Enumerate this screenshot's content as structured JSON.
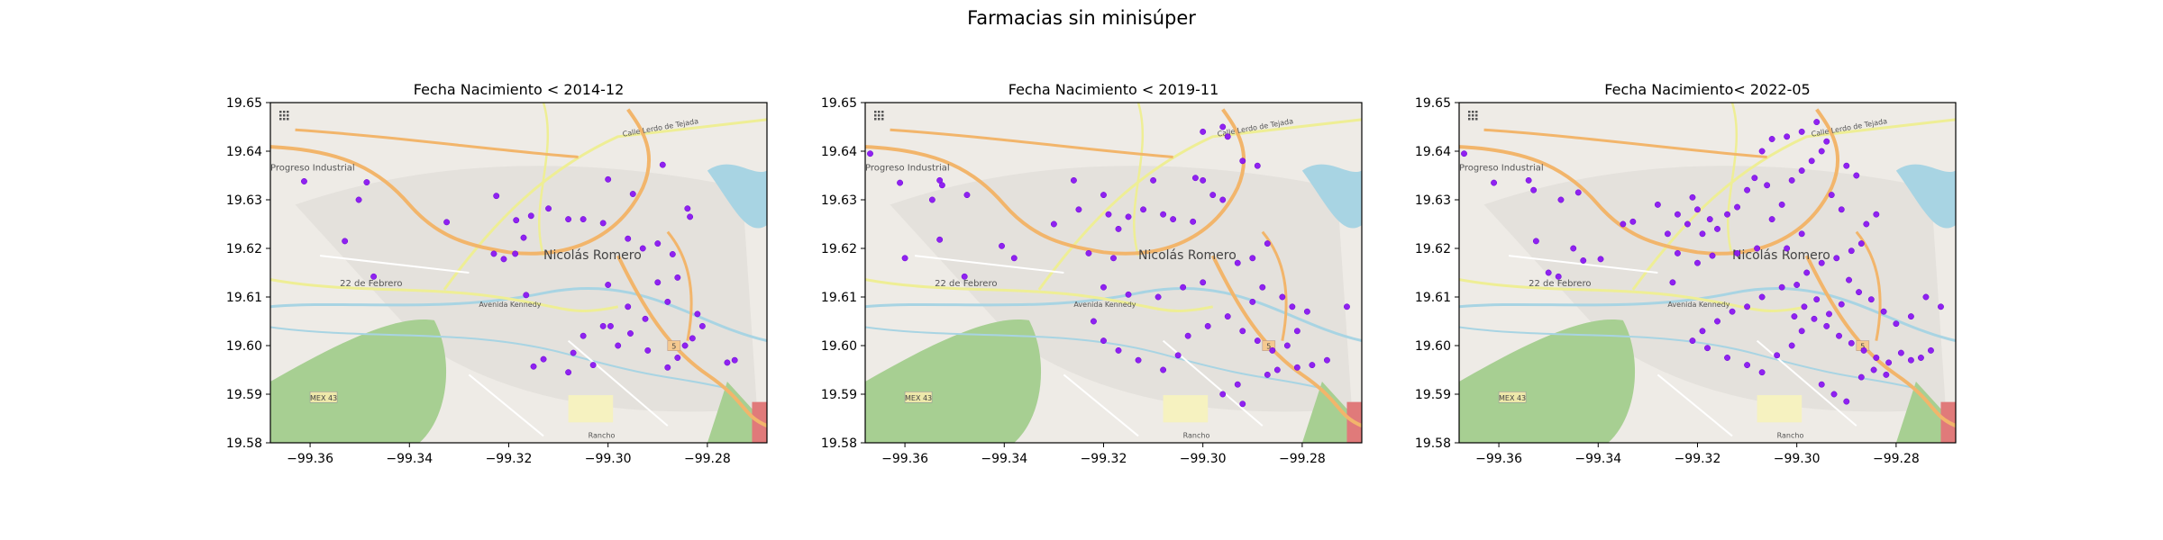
{
  "figure": {
    "suptitle": "Farmacias sin minisúper"
  },
  "style": {
    "point_color": "#8a17f0",
    "point_edge": "#6a00d6",
    "map_land": "#eeebe6",
    "map_park": "#a7cf92",
    "map_water": "#a8d4e3",
    "map_road_major": "#f2b56b",
    "map_road_secondary": "#eeee95"
  },
  "map_labels": {
    "progreso": "Progreso Industrial",
    "nicolas": "Nicolás Romero",
    "febrero": "22 de Febrero",
    "kennedy": "Avenida Kennedy",
    "mex43": "MEX 43",
    "rancho": "Rancho",
    "lerdo": "Calle Lerdo de Tejada",
    "shield": "5"
  },
  "chart_data": [
    {
      "type": "scatter",
      "title": "Fecha Nacimiento < 2014-12",
      "xlim": [
        -99.368,
        -99.268
      ],
      "ylim": [
        19.58,
        19.65
      ],
      "xticks": [
        -99.36,
        -99.34,
        -99.32,
        -99.3,
        -99.28
      ],
      "xtick_labels": [
        "−99.36",
        "−99.34",
        "−99.32",
        "−99.30",
        "−99.28"
      ],
      "yticks": [
        19.58,
        19.59,
        19.6,
        19.61,
        19.62,
        19.63,
        19.64,
        19.65
      ],
      "ytick_labels": [
        "19.58",
        "19.59",
        "19.60",
        "19.61",
        "19.62",
        "19.63",
        "19.64",
        "19.65"
      ],
      "background": "OpenStreetMap tiles",
      "grid": false,
      "points": [
        [
          -99.3612,
          19.6338
        ],
        [
          -99.3486,
          19.6336
        ],
        [
          -99.3502,
          19.63
        ],
        [
          -99.353,
          19.6215
        ],
        [
          -99.3472,
          19.6142
        ],
        [
          -99.3325,
          19.6254
        ],
        [
          -99.3225,
          19.6308
        ],
        [
          -99.3185,
          19.6258
        ],
        [
          -99.317,
          19.6222
        ],
        [
          -99.3155,
          19.6267
        ],
        [
          -99.312,
          19.6282
        ],
        [
          -99.308,
          19.626
        ],
        [
          -99.305,
          19.626
        ],
        [
          -99.301,
          19.6252
        ],
        [
          -99.3,
          19.6342
        ],
        [
          -99.295,
          19.6312
        ],
        [
          -99.289,
          19.6372
        ],
        [
          -99.284,
          19.6282
        ],
        [
          -99.2835,
          19.6265
        ],
        [
          -99.321,
          19.6178
        ],
        [
          -99.323,
          19.6189
        ],
        [
          -99.3187,
          19.6189
        ],
        [
          -99.3165,
          19.6104
        ],
        [
          -99.296,
          19.622
        ],
        [
          -99.293,
          19.62
        ],
        [
          -99.29,
          19.621
        ],
        [
          -99.287,
          19.6188
        ],
        [
          -99.3,
          19.6125
        ],
        [
          -99.296,
          19.608
        ],
        [
          -99.2995,
          19.604
        ],
        [
          -99.2955,
          19.6025
        ],
        [
          -99.305,
          19.602
        ],
        [
          -99.307,
          19.5985
        ],
        [
          -99.303,
          19.596
        ],
        [
          -99.308,
          19.5945
        ],
        [
          -99.313,
          19.5972
        ],
        [
          -99.315,
          19.5957
        ],
        [
          -99.292,
          19.599
        ],
        [
          -99.288,
          19.5955
        ],
        [
          -99.286,
          19.5975
        ],
        [
          -99.2845,
          19.6
        ],
        [
          -99.283,
          19.6015
        ],
        [
          -99.281,
          19.604
        ],
        [
          -99.282,
          19.6065
        ],
        [
          -99.276,
          19.5965
        ],
        [
          -99.2745,
          19.597
        ],
        [
          -99.288,
          19.609
        ],
        [
          -99.29,
          19.613
        ],
        [
          -99.286,
          19.614
        ],
        [
          -99.2925,
          19.6055
        ],
        [
          -99.301,
          19.604
        ],
        [
          -99.298,
          19.6
        ]
      ]
    },
    {
      "type": "scatter",
      "title": "Fecha Nacimiento < 2019-11",
      "xlim": [
        -99.368,
        -99.268
      ],
      "ylim": [
        19.58,
        19.65
      ],
      "xticks": [
        -99.36,
        -99.34,
        -99.32,
        -99.3,
        -99.28
      ],
      "xtick_labels": [
        "−99.36",
        "−99.34",
        "−99.32",
        "−99.30",
        "−99.28"
      ],
      "yticks": [
        19.58,
        19.59,
        19.6,
        19.61,
        19.62,
        19.63,
        19.64,
        19.65
      ],
      "ytick_labels": [
        "19.58",
        "19.59",
        "19.60",
        "19.61",
        "19.62",
        "19.63",
        "19.64",
        "19.65"
      ],
      "background": "OpenStreetMap tiles",
      "grid": false,
      "points": [
        [
          -99.367,
          19.6395
        ],
        [
          -99.361,
          19.6335
        ],
        [
          -99.353,
          19.634
        ],
        [
          -99.3525,
          19.633
        ],
        [
          -99.3545,
          19.63
        ],
        [
          -99.3475,
          19.631
        ],
        [
          -99.353,
          19.6218
        ],
        [
          -99.348,
          19.6142
        ],
        [
          -99.36,
          19.618
        ],
        [
          -99.3405,
          19.6205
        ],
        [
          -99.338,
          19.618
        ],
        [
          -99.33,
          19.625
        ],
        [
          -99.325,
          19.628
        ],
        [
          -99.326,
          19.634
        ],
        [
          -99.32,
          19.631
        ],
        [
          -99.319,
          19.627
        ],
        [
          -99.317,
          19.624
        ],
        [
          -99.315,
          19.6265
        ],
        [
          -99.312,
          19.628
        ],
        [
          -99.31,
          19.634
        ],
        [
          -99.308,
          19.627
        ],
        [
          -99.306,
          19.626
        ],
        [
          -99.302,
          19.6255
        ],
        [
          -99.3015,
          19.6345
        ],
        [
          -99.3,
          19.634
        ],
        [
          -99.298,
          19.631
        ],
        [
          -99.296,
          19.63
        ],
        [
          -99.295,
          19.643
        ],
        [
          -99.292,
          19.638
        ],
        [
          -99.289,
          19.637
        ],
        [
          -99.3,
          19.644
        ],
        [
          -99.296,
          19.645
        ],
        [
          -99.287,
          19.621
        ],
        [
          -99.29,
          19.618
        ],
        [
          -99.293,
          19.617
        ],
        [
          -99.3,
          19.613
        ],
        [
          -99.304,
          19.612
        ],
        [
          -99.309,
          19.61
        ],
        [
          -99.315,
          19.6105
        ],
        [
          -99.32,
          19.612
        ],
        [
          -99.322,
          19.605
        ],
        [
          -99.32,
          19.601
        ],
        [
          -99.317,
          19.599
        ],
        [
          -99.313,
          19.597
        ],
        [
          -99.308,
          19.595
        ],
        [
          -99.305,
          19.598
        ],
        [
          -99.303,
          19.602
        ],
        [
          -99.299,
          19.604
        ],
        [
          -99.295,
          19.606
        ],
        [
          -99.292,
          19.603
        ],
        [
          -99.289,
          19.601
        ],
        [
          -99.286,
          19.599
        ],
        [
          -99.283,
          19.6
        ],
        [
          -99.281,
          19.603
        ],
        [
          -99.279,
          19.607
        ],
        [
          -99.282,
          19.608
        ],
        [
          -99.284,
          19.61
        ],
        [
          -99.288,
          19.612
        ],
        [
          -99.29,
          19.609
        ],
        [
          -99.293,
          19.592
        ],
        [
          -99.296,
          19.59
        ],
        [
          -99.292,
          19.588
        ],
        [
          -99.285,
          19.595
        ],
        [
          -99.278,
          19.596
        ],
        [
          -99.275,
          19.597
        ],
        [
          -99.271,
          19.608
        ],
        [
          -99.287,
          19.594
        ],
        [
          -99.281,
          19.5955
        ],
        [
          -99.318,
          19.618
        ],
        [
          -99.323,
          19.619
        ]
      ]
    },
    {
      "type": "scatter",
      "title": "Fecha Nacimiento< 2022-05",
      "xlim": [
        -99.368,
        -99.268
      ],
      "ylim": [
        19.58,
        19.65
      ],
      "xticks": [
        -99.36,
        -99.34,
        -99.32,
        -99.3,
        -99.28
      ],
      "xtick_labels": [
        "−99.36",
        "−99.34",
        "−99.32",
        "−99.30",
        "−99.28"
      ],
      "yticks": [
        19.58,
        19.59,
        19.6,
        19.61,
        19.62,
        19.63,
        19.64,
        19.65
      ],
      "ytick_labels": [
        "19.58",
        "19.59",
        "19.60",
        "19.61",
        "19.62",
        "19.63",
        "19.64",
        "19.65"
      ],
      "background": "OpenStreetMap tiles",
      "grid": false,
      "points": [
        [
          -99.367,
          19.6395
        ],
        [
          -99.361,
          19.6335
        ],
        [
          -99.354,
          19.634
        ],
        [
          -99.353,
          19.632
        ],
        [
          -99.3475,
          19.63
        ],
        [
          -99.344,
          19.6315
        ],
        [
          -99.3525,
          19.6215
        ],
        [
          -99.345,
          19.62
        ],
        [
          -99.343,
          19.6175
        ],
        [
          -99.3395,
          19.6178
        ],
        [
          -99.348,
          19.6142
        ],
        [
          -99.35,
          19.615
        ],
        [
          -99.335,
          19.625
        ],
        [
          -99.333,
          19.6255
        ],
        [
          -99.328,
          19.629
        ],
        [
          -99.326,
          19.623
        ],
        [
          -99.324,
          19.627
        ],
        [
          -99.322,
          19.625
        ],
        [
          -99.321,
          19.6305
        ],
        [
          -99.32,
          19.628
        ],
        [
          -99.319,
          19.623
        ],
        [
          -99.3175,
          19.626
        ],
        [
          -99.316,
          19.624
        ],
        [
          -99.314,
          19.627
        ],
        [
          -99.312,
          19.6285
        ],
        [
          -99.31,
          19.632
        ],
        [
          -99.3085,
          19.6345
        ],
        [
          -99.306,
          19.633
        ],
        [
          -99.305,
          19.626
        ],
        [
          -99.303,
          19.629
        ],
        [
          -99.301,
          19.634
        ],
        [
          -99.299,
          19.636
        ],
        [
          -99.297,
          19.638
        ],
        [
          -99.295,
          19.64
        ],
        [
          -99.293,
          19.631
        ],
        [
          -99.291,
          19.628
        ],
        [
          -99.29,
          19.637
        ],
        [
          -99.288,
          19.635
        ],
        [
          -99.299,
          19.644
        ],
        [
          -99.296,
          19.646
        ],
        [
          -99.294,
          19.642
        ],
        [
          -99.302,
          19.643
        ],
        [
          -99.305,
          19.6425
        ],
        [
          -99.307,
          19.64
        ],
        [
          -99.286,
          19.625
        ],
        [
          -99.284,
          19.627
        ],
        [
          -99.287,
          19.621
        ],
        [
          -99.289,
          19.6195
        ],
        [
          -99.292,
          19.618
        ],
        [
          -99.295,
          19.617
        ],
        [
          -99.298,
          19.615
        ],
        [
          -99.3,
          19.6125
        ],
        [
          -99.303,
          19.612
        ],
        [
          -99.307,
          19.61
        ],
        [
          -99.31,
          19.608
        ],
        [
          -99.313,
          19.607
        ],
        [
          -99.316,
          19.605
        ],
        [
          -99.319,
          19.603
        ],
        [
          -99.321,
          19.601
        ],
        [
          -99.318,
          19.5995
        ],
        [
          -99.314,
          19.5975
        ],
        [
          -99.31,
          19.596
        ],
        [
          -99.307,
          19.5945
        ],
        [
          -99.304,
          19.598
        ],
        [
          -99.301,
          19.6
        ],
        [
          -99.299,
          19.603
        ],
        [
          -99.2965,
          19.6055
        ],
        [
          -99.294,
          19.604
        ],
        [
          -99.2915,
          19.602
        ],
        [
          -99.289,
          19.6005
        ],
        [
          -99.2865,
          19.599
        ],
        [
          -99.284,
          19.5975
        ],
        [
          -99.2815,
          19.5965
        ],
        [
          -99.279,
          19.5985
        ],
        [
          -99.277,
          19.597
        ],
        [
          -99.275,
          19.5975
        ],
        [
          -99.273,
          19.599
        ],
        [
          -99.271,
          19.608
        ],
        [
          -99.274,
          19.61
        ],
        [
          -99.277,
          19.606
        ],
        [
          -99.28,
          19.6045
        ],
        [
          -99.2825,
          19.607
        ],
        [
          -99.285,
          19.6095
        ],
        [
          -99.2875,
          19.611
        ],
        [
          -99.2895,
          19.6135
        ],
        [
          -99.291,
          19.6085
        ],
        [
          -99.2935,
          19.6065
        ],
        [
          -99.296,
          19.6095
        ],
        [
          -99.2985,
          19.608
        ],
        [
          -99.3005,
          19.606
        ],
        [
          -99.295,
          19.592
        ],
        [
          -99.2925,
          19.59
        ],
        [
          -99.29,
          19.5885
        ],
        [
          -99.287,
          19.5935
        ],
        [
          -99.2845,
          19.595
        ],
        [
          -99.282,
          19.594
        ],
        [
          -99.324,
          19.619
        ],
        [
          -99.32,
          19.617
        ],
        [
          -99.317,
          19.6185
        ],
        [
          -99.312,
          19.619
        ],
        [
          -99.308,
          19.62
        ],
        [
          -99.325,
          19.613
        ],
        [
          -99.302,
          19.62
        ],
        [
          -99.299,
          19.623
        ]
      ]
    }
  ]
}
